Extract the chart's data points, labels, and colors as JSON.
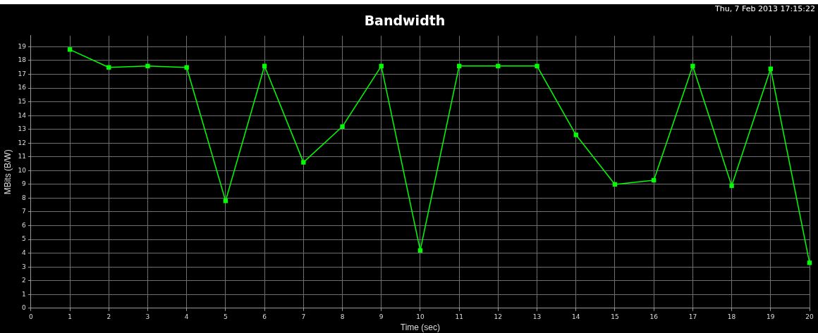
{
  "chart_data": {
    "type": "line",
    "title": "Bandwidth",
    "xlabel": "Time (sec)",
    "ylabel": "MBits (B/W)",
    "annotations": [
      "Thu, 7 Feb 2013 17:15:22"
    ],
    "x": [
      1,
      2,
      3,
      4,
      5,
      6,
      7,
      8,
      9,
      10,
      11,
      12,
      13,
      14,
      15,
      16,
      17,
      18,
      19,
      20
    ],
    "series": [
      {
        "color": "#00ff00",
        "values": [
          18.8,
          17.5,
          17.6,
          17.5,
          7.8,
          17.6,
          10.6,
          13.2,
          17.6,
          4.2,
          17.6,
          17.6,
          17.6,
          12.6,
          9.0,
          9.3,
          17.6,
          8.9,
          17.4,
          3.3
        ]
      }
    ],
    "xlim": [
      0,
      20
    ],
    "xticks": [
      0,
      1,
      2,
      3,
      4,
      5,
      6,
      7,
      8,
      9,
      10,
      11,
      12,
      13,
      14,
      15,
      16,
      17,
      18,
      19,
      20
    ],
    "ylim": [
      0,
      19.8
    ],
    "yticks": [
      0,
      1,
      2,
      3,
      4,
      5,
      6,
      7,
      8,
      9,
      10,
      11,
      12,
      13,
      14,
      15,
      16,
      17,
      18,
      19
    ],
    "grid": true,
    "marker": "square",
    "line_style": "solid",
    "legend": false
  }
}
